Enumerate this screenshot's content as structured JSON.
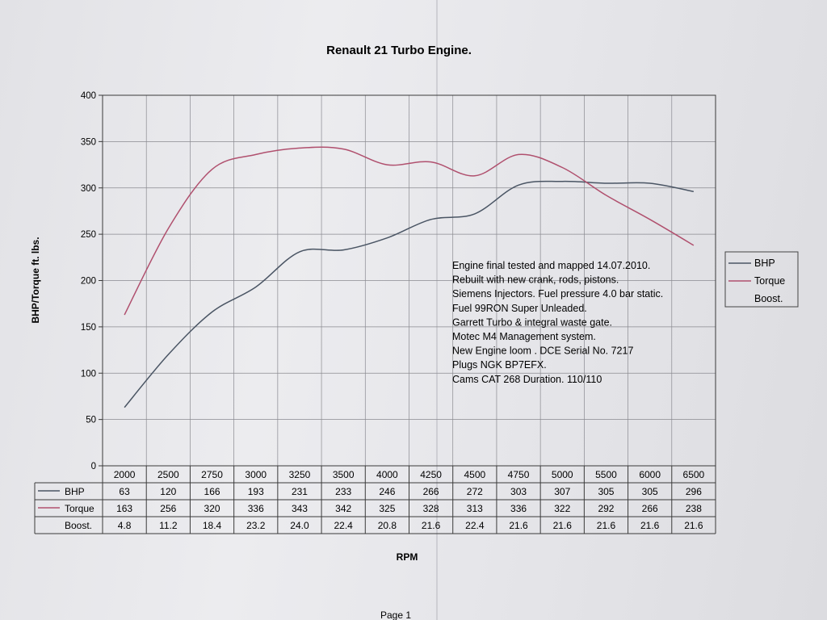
{
  "chart_data": {
    "type": "line",
    "title": "Renault 21 Turbo Engine.",
    "xlabel": "RPM",
    "ylabel": "BHP/Torque ft. lbs.",
    "ylim": [
      0,
      400
    ],
    "yticks": [
      0,
      50,
      100,
      150,
      200,
      250,
      300,
      350,
      400
    ],
    "grid": true,
    "legend_position": "right",
    "categories": [
      "2000",
      "2500",
      "2750",
      "3000",
      "3250",
      "3500",
      "4000",
      "4250",
      "4500",
      "4750",
      "5000",
      "5500",
      "6000",
      "6500"
    ],
    "series": [
      {
        "name": "BHP",
        "color": "#4a5564",
        "values": [
          63,
          120,
          166,
          193,
          231,
          233,
          246,
          266,
          272,
          303,
          307,
          305,
          305,
          296
        ],
        "table_values": [
          "63",
          "120",
          "166",
          "193",
          "231",
          "233",
          "246",
          "266",
          "272",
          "303",
          "307",
          "305",
          "305",
          "296"
        ]
      },
      {
        "name": "Torque",
        "color": "#b0506e",
        "values": [
          163,
          256,
          320,
          336,
          343,
          342,
          325,
          328,
          313,
          336,
          322,
          292,
          266,
          238
        ],
        "table_values": [
          "163",
          "256",
          "320",
          "336",
          "343",
          "342",
          "325",
          "328",
          "313",
          "336",
          "322",
          "292",
          "266",
          "238"
        ]
      },
      {
        "name": "Boost.",
        "color": "",
        "values": [
          4.8,
          11.2,
          18.4,
          23.2,
          24.0,
          22.4,
          20.8,
          21.6,
          22.4,
          21.6,
          21.6,
          21.6,
          21.6,
          21.6
        ],
        "table_values": [
          "4.8",
          "11.2",
          "18.4",
          "23.2",
          "24.0",
          "22.4",
          "20.8",
          "21.6",
          "22.4",
          "21.6",
          "21.6",
          "21.6",
          "21.6",
          "21.6"
        ]
      }
    ],
    "annotations": [
      "Engine final tested and mapped  14.07.2010.",
      "Rebuilt with new crank, rods, pistons.",
      "Siemens Injectors.  Fuel pressure 4.0 bar static.",
      "Fuel 99RON Super Unleaded.",
      "Garrett Turbo & integral waste gate.",
      "Motec M4 Management system.",
      "New Engine loom . DCE Serial No. 7217",
      "Plugs NGK BP7EFX.",
      "Cams CAT 268 Duration.  110/110"
    ]
  },
  "page": {
    "footer": "Page 1"
  }
}
